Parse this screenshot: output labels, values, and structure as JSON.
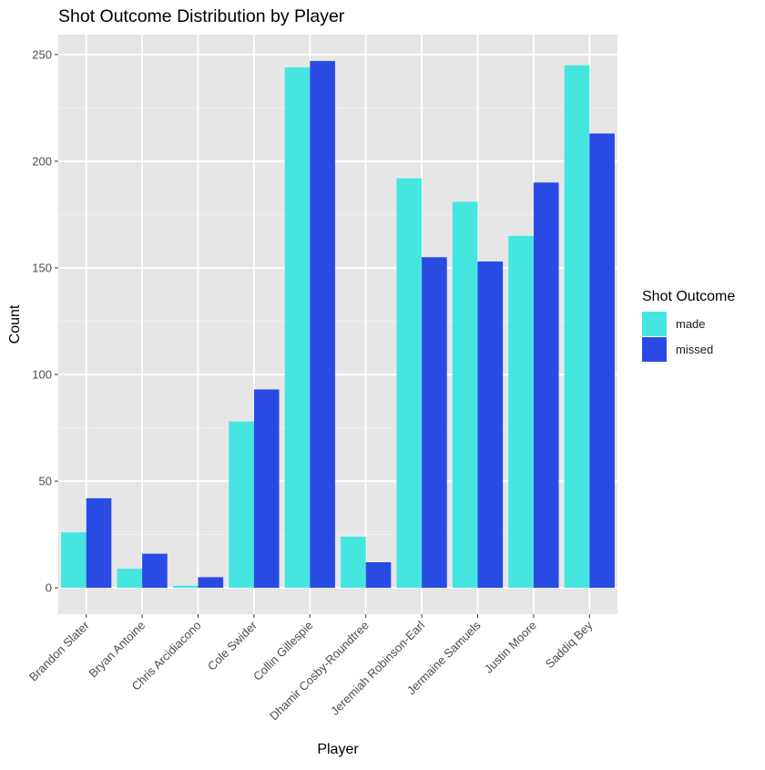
{
  "chart_data": {
    "type": "bar",
    "title": "Shot Outcome Distribution by Player",
    "xlabel": "Player",
    "ylabel": "Count",
    "categories": [
      "Brandon Slater",
      "Bryan Antoine",
      "Chris Arcidiacono",
      "Cole Swider",
      "Collin Gillespie",
      "Dhamir Cosby-Roundtree",
      "Jeremiah Robinson-Earl",
      "Jermaine Samuels",
      "Justin Moore",
      "Saddiq Bey"
    ],
    "series": [
      {
        "name": "made",
        "color": "#45E6E0",
        "values": [
          26,
          9,
          1,
          78,
          244,
          24,
          192,
          181,
          165,
          245
        ]
      },
      {
        "name": "missed",
        "color": "#2A4BE3",
        "values": [
          42,
          16,
          5,
          93,
          247,
          12,
          155,
          153,
          190,
          213
        ]
      }
    ],
    "ylim": [
      -12.35,
      259.35
    ],
    "yticks": [
      0,
      50,
      100,
      150,
      200,
      250
    ],
    "ytick_labels": [
      "0",
      "50",
      "100",
      "150",
      "200",
      "250"
    ],
    "grid": true,
    "legend": {
      "title": "Shot Outcome",
      "position": "right"
    }
  }
}
